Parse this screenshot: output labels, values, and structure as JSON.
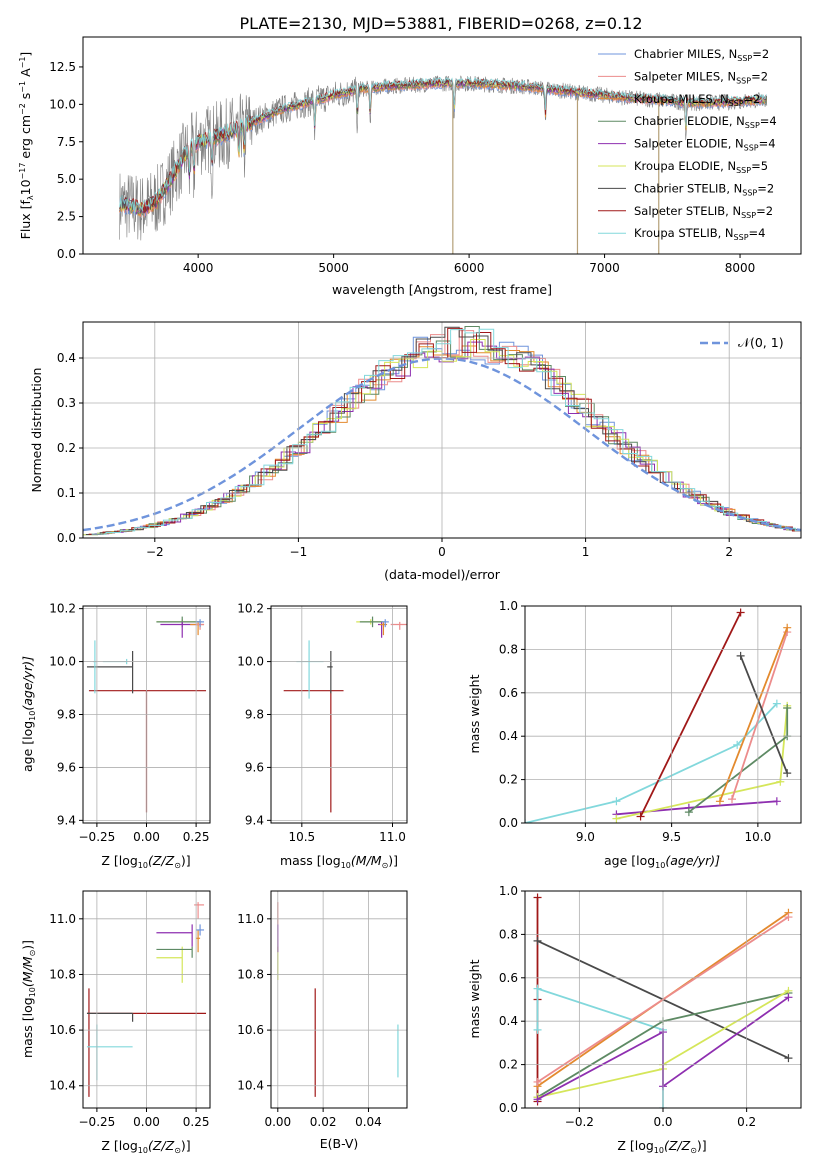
{
  "page_title": "PLATE=2130, MJD=53881, FIBERID=0268, z=0.12",
  "colors": {
    "chabrier_miles": "#6f94dc",
    "salpeter_miles": "#ec8c8c",
    "kroupa_miles": "#e38a2e",
    "chabrier_elodie": "#5e8a64",
    "salpeter_elodie": "#8e2fb0",
    "kroupa_elodie": "#d5e65a",
    "chabrier_stelib": "#4a4a4a",
    "salpeter_stelib": "#a01818",
    "kroupa_stelib": "#82d8dc",
    "normal_curve": "#6f94dc",
    "grid": "#b0b0b0"
  },
  "chart_data": [
    {
      "id": "spectrum",
      "type": "line",
      "xlabel": "wavelength [Angstrom, rest frame]",
      "ylabel": "Flux [f",
      "ylabel_parts": [
        "λ",
        "10",
        "−17",
        " erg cm",
        "−2",
        " s",
        "−1",
        " A",
        "−1",
        "]"
      ],
      "xlim": [
        3150,
        8450
      ],
      "ylim": [
        0,
        14.5
      ],
      "xticks": [
        4000,
        5000,
        6000,
        7000,
        8000
      ],
      "yticks": [
        0.0,
        2.5,
        5.0,
        7.5,
        10.0,
        12.5
      ],
      "ytick_labels": [
        "0.0",
        "2.5",
        "5.0",
        "7.5",
        "10.0",
        "12.5"
      ],
      "legend_position": "upper-right",
      "legend": [
        {
          "label": "Chabrier MILES, N",
          "sub": "SSP",
          "suffix": "=2"
        },
        {
          "label": "Salpeter MILES, N",
          "sub": "SSP",
          "suffix": "=2"
        },
        {
          "label": "Kroupa MILES, N",
          "sub": "SSP",
          "suffix": "=2"
        },
        {
          "label": "Chabrier ELODIE, N",
          "sub": "SSP",
          "suffix": "=4"
        },
        {
          "label": "Salpeter ELODIE, N",
          "sub": "SSP",
          "suffix": "=4"
        },
        {
          "label": "Kroupa ELODIE, N",
          "sub": "SSP",
          "suffix": "=5"
        },
        {
          "label": "Chabrier STELIB, N",
          "sub": "SSP",
          "suffix": "=2"
        },
        {
          "label": "Salpeter STELIB, N",
          "sub": "SSP",
          "suffix": "=2"
        },
        {
          "label": "Kroupa STELIB, N",
          "sub": "SSP",
          "suffix": "=4"
        }
      ],
      "continuum": [
        [
          3400,
          3.4
        ],
        [
          3600,
          3.0
        ],
        [
          3700,
          3.6
        ],
        [
          3800,
          5.0
        ],
        [
          3900,
          6.6
        ],
        [
          4000,
          7.5
        ],
        [
          4200,
          8.0
        ],
        [
          4400,
          8.8
        ],
        [
          4600,
          9.6
        ],
        [
          4800,
          10.1
        ],
        [
          5000,
          10.6
        ],
        [
          5200,
          11.0
        ],
        [
          5400,
          11.2
        ],
        [
          5600,
          11.3
        ],
        [
          5800,
          11.4
        ],
        [
          6000,
          11.4
        ],
        [
          6200,
          11.3
        ],
        [
          6400,
          11.2
        ],
        [
          6600,
          11.0
        ],
        [
          6800,
          10.8
        ],
        [
          7000,
          10.6
        ],
        [
          7200,
          10.4
        ],
        [
          7400,
          10.3
        ],
        [
          7600,
          10.1
        ],
        [
          7800,
          10.1
        ],
        [
          8000,
          10.2
        ],
        [
          8200,
          10.3
        ]
      ],
      "absorption_lines": [
        3934,
        3969,
        4102,
        4300,
        4340,
        4861,
        5175,
        5270,
        5890,
        6563,
        7600
      ],
      "drop_lines": [
        {
          "x": 5880,
          "y": 0.0
        },
        {
          "x": 6800,
          "y": 0.0
        },
        {
          "x": 7400,
          "y": 0.0
        }
      ]
    },
    {
      "id": "residuals",
      "type": "step-histogram",
      "xlabel": "(data-model)/error",
      "ylabel": "Normed distribution",
      "xlim": [
        -2.5,
        2.5
      ],
      "ylim": [
        0,
        0.48
      ],
      "xticks": [
        -2,
        -1,
        0,
        1,
        2
      ],
      "xtick_labels": [
        "−2",
        "−1",
        "0",
        "1",
        "2"
      ],
      "yticks": [
        0.0,
        0.1,
        0.2,
        0.3,
        0.4
      ],
      "ytick_labels": [
        "0.0",
        "0.1",
        "0.2",
        "0.3",
        "0.4"
      ],
      "bin_width": 0.1,
      "curve_label": "𝒩(0, 1)",
      "legend_position": "upper-right"
    },
    {
      "id": "z-age",
      "type": "errorbar",
      "xlabel": "Z [log",
      "xlabel_sub": "10",
      "xlabel_tail": "(Z/Z",
      "xlabel_end": ")]",
      "ylabel": "age  [log",
      "ylabel_tail": "(age/yr)]",
      "xlim": [
        -0.32,
        0.32
      ],
      "ylim": [
        9.39,
        10.21
      ],
      "xticks": [
        -0.25,
        0.0,
        0.25
      ],
      "xtick_labels": [
        "−0.25",
        "0.00",
        "0.25"
      ],
      "yticks": [
        9.4,
        9.6,
        9.8,
        10.0,
        10.2
      ],
      "ytick_labels": [
        "9.4",
        "9.6",
        "9.8",
        "10.0",
        "10.2"
      ],
      "points": [
        {
          "s": "salpeter_stelib",
          "x": 0.0,
          "xl": -0.29,
          "xh": 0.3,
          "y": 9.89,
          "yl": 9.43,
          "yh": 9.89
        },
        {
          "s": "chabrier_stelib",
          "x": -0.07,
          "xl": -0.3,
          "xh": -0.07,
          "y": 9.98,
          "yl": 9.88,
          "yh": 10.04
        },
        {
          "s": "kroupa_stelib",
          "x": -0.26,
          "xl": -0.27,
          "xh": -0.25,
          "y": 10.0,
          "yl": 9.88,
          "yh": 10.08
        },
        {
          "s": "kroupa_stelib",
          "x": -0.1,
          "xl": -0.22,
          "xh": -0.1,
          "y": 10.0,
          "yl": 9.99,
          "yh": 10.01
        },
        {
          "s": "kroupa_elodie",
          "x": 0.18,
          "xl": 0.05,
          "xh": 0.28,
          "y": 10.15,
          "yl": 10.14,
          "yh": 10.16
        },
        {
          "s": "chabrier_elodie",
          "x": 0.18,
          "xl": 0.05,
          "xh": 0.27,
          "y": 10.15,
          "yl": 10.13,
          "yh": 10.17
        },
        {
          "s": "salpeter_elodie",
          "x": 0.18,
          "xl": 0.07,
          "xh": 0.27,
          "y": 10.14,
          "yl": 10.09,
          "yh": 10.15
        },
        {
          "s": "kroupa_miles",
          "x": 0.26,
          "xl": 0.22,
          "xh": 0.29,
          "y": 10.14,
          "yl": 10.1,
          "yh": 10.15
        },
        {
          "s": "salpeter_miles",
          "x": 0.27,
          "xl": 0.25,
          "xh": 0.29,
          "y": 10.14,
          "yl": 10.12,
          "yh": 10.15
        },
        {
          "s": "chabrier_miles",
          "x": 0.27,
          "xl": 0.25,
          "xh": 0.29,
          "y": 10.15,
          "yl": 10.13,
          "yh": 10.16
        }
      ]
    },
    {
      "id": "mass-age",
      "type": "errorbar",
      "xlabel": "mass [log",
      "xlabel_tail": "(M/M",
      "xlim": [
        10.33,
        11.08
      ],
      "ylim": [
        9.39,
        10.21
      ],
      "xticks": [
        10.5,
        11.0
      ],
      "xtick_labels": [
        "10.5",
        "11.0"
      ],
      "yticks": [
        9.4,
        9.6,
        9.8,
        10.0,
        10.2
      ],
      "ytick_labels": [
        "9.4",
        "9.6",
        "9.8",
        "10.0",
        "10.2"
      ],
      "points": [
        {
          "s": "salpeter_stelib",
          "x": 10.66,
          "xl": 10.4,
          "xh": 10.73,
          "y": 9.89,
          "yl": 9.43,
          "yh": 9.89
        },
        {
          "s": "chabrier_stelib",
          "x": 10.66,
          "xl": 10.64,
          "xh": 10.67,
          "y": 9.98,
          "yl": 9.88,
          "yh": 10.04
        },
        {
          "s": "kroupa_stelib",
          "x": 10.54,
          "xl": 10.47,
          "xh": 10.62,
          "y": 10.0,
          "yl": 9.86,
          "yh": 10.08
        },
        {
          "s": "kroupa_elodie",
          "x": 10.88,
          "xl": 10.8,
          "xh": 10.96,
          "y": 10.15,
          "yl": 10.14,
          "yh": 10.16
        },
        {
          "s": "chabrier_elodie",
          "x": 10.89,
          "xl": 10.82,
          "xh": 10.95,
          "y": 10.15,
          "yl": 10.13,
          "yh": 10.17
        },
        {
          "s": "salpeter_elodie",
          "x": 10.94,
          "xl": 10.92,
          "xh": 10.96,
          "y": 10.14,
          "yl": 10.09,
          "yh": 10.15
        },
        {
          "s": "kroupa_miles",
          "x": 10.95,
          "xl": 10.93,
          "xh": 10.97,
          "y": 10.14,
          "yl": 10.1,
          "yh": 10.15
        },
        {
          "s": "salpeter_miles",
          "x": 11.04,
          "xl": 10.99,
          "xh": 11.08,
          "y": 10.14,
          "yl": 10.12,
          "yh": 10.15
        },
        {
          "s": "chabrier_miles",
          "x": 10.96,
          "xl": 10.94,
          "xh": 10.98,
          "y": 10.15,
          "yl": 10.13,
          "yh": 10.16
        }
      ]
    },
    {
      "id": "age-weight",
      "type": "line",
      "xlabel": "age  [log",
      "xlabel_tail": "(age/yr)]",
      "ylabel": "mass weight",
      "xlim": [
        8.65,
        10.25
      ],
      "ylim": [
        0,
        1
      ],
      "xticks": [
        9.0,
        9.5,
        10.0
      ],
      "xtick_labels": [
        "9.0",
        "9.5",
        "10.0"
      ],
      "yticks": [
        0.0,
        0.2,
        0.4,
        0.6,
        0.8,
        1.0
      ],
      "ytick_labels": [
        "0.0",
        "0.2",
        "0.4",
        "0.6",
        "0.8",
        "1.0"
      ],
      "series": [
        {
          "s": "kroupa_stelib",
          "x": [
            8.65,
            9.18,
            9.88,
            10.11
          ],
          "y": [
            0.0,
            0.1,
            0.36,
            0.55
          ]
        },
        {
          "s": "salpeter_elodie",
          "x": [
            9.18,
            9.6,
            10.11
          ],
          "y": [
            0.04,
            0.07,
            0.1
          ]
        },
        {
          "s": "kroupa_elodie",
          "x": [
            9.18,
            10.13,
            10.17,
            10.17
          ],
          "y": [
            0.02,
            0.19,
            0.54,
            0.53
          ]
        },
        {
          "s": "chabrier_elodie",
          "x": [
            9.6,
            10.17,
            10.17
          ],
          "y": [
            0.05,
            0.4,
            0.53
          ]
        },
        {
          "s": "salpeter_miles",
          "x": [
            9.85,
            10.17
          ],
          "y": [
            0.11,
            0.88
          ]
        },
        {
          "s": "kroupa_miles",
          "x": [
            9.78,
            10.17
          ],
          "y": [
            0.1,
            0.9
          ]
        },
        {
          "s": "chabrier_stelib",
          "x": [
            9.9,
            10.17
          ],
          "y": [
            0.77,
            0.23
          ]
        },
        {
          "s": "salpeter_stelib",
          "x": [
            9.32,
            9.9
          ],
          "y": [
            0.03,
            0.97
          ]
        }
      ]
    },
    {
      "id": "z-mass",
      "type": "errorbar",
      "ylabel": "mass [log",
      "ylabel_tail": "(M/M",
      "xlim": [
        -0.32,
        0.32
      ],
      "ylim": [
        10.32,
        11.1
      ],
      "xticks": [
        -0.25,
        0.0,
        0.25
      ],
      "xtick_labels": [
        "−0.25",
        "0.00",
        "0.25"
      ],
      "yticks": [
        10.4,
        10.6,
        10.8,
        11.0
      ],
      "ytick_labels": [
        "10.4",
        "10.6",
        "10.8",
        "11.0"
      ],
      "points": [
        {
          "s": "salpeter_stelib",
          "x": -0.29,
          "xl": -0.3,
          "xh": 0.3,
          "y": 10.66,
          "yl": 10.36,
          "yh": 10.75
        },
        {
          "s": "chabrier_stelib",
          "x": -0.07,
          "xl": -0.3,
          "xh": -0.07,
          "y": 10.66,
          "yl": 10.63,
          "yh": 10.66
        },
        {
          "s": "kroupa_stelib",
          "x": -0.25,
          "xl": -0.3,
          "xh": -0.07,
          "y": 10.54,
          "yl": 10.42,
          "yh": 10.62
        },
        {
          "s": "kroupa_elodie",
          "x": 0.18,
          "xl": 0.05,
          "xh": 0.18,
          "y": 10.86,
          "yl": 10.77,
          "yh": 10.9
        },
        {
          "s": "chabrier_elodie",
          "x": 0.23,
          "xl": 0.05,
          "xh": 0.23,
          "y": 10.89,
          "yl": 10.86,
          "yh": 10.9
        },
        {
          "s": "salpeter_elodie",
          "x": 0.23,
          "xl": 0.05,
          "xh": 0.23,
          "y": 10.95,
          "yl": 10.9,
          "yh": 10.98
        },
        {
          "s": "kroupa_miles",
          "x": 0.26,
          "xl": 0.25,
          "xh": 0.27,
          "y": 10.93,
          "yl": 10.88,
          "yh": 10.96
        },
        {
          "s": "salpeter_miles",
          "x": 0.26,
          "xl": 0.24,
          "xh": 0.29,
          "y": 11.05,
          "yl": 11.0,
          "yh": 11.06
        },
        {
          "s": "chabrier_miles",
          "x": 0.27,
          "xl": 0.25,
          "xh": 0.29,
          "y": 10.96,
          "yl": 10.94,
          "yh": 10.98
        }
      ]
    },
    {
      "id": "ebv-mass",
      "type": "errorbar",
      "xlabel": "E(B-V)",
      "xlim": [
        -0.003,
        0.057
      ],
      "ylim": [
        10.32,
        11.1
      ],
      "xticks": [
        0.0,
        0.02,
        0.04
      ],
      "xtick_labels": [
        "0.00",
        "0.02",
        "0.04"
      ],
      "yticks": [
        10.4,
        10.6,
        10.8,
        11.0
      ],
      "ytick_labels": [
        "10.4",
        "10.6",
        "10.8",
        "11.0"
      ],
      "points": [
        {
          "s": "salpeter_stelib",
          "x": 0.0165,
          "xl": 0.0165,
          "xh": 0.0165,
          "y": 10.66,
          "yl": 10.36,
          "yh": 10.75
        },
        {
          "s": "kroupa_stelib",
          "x": 0.053,
          "xl": 0.053,
          "xh": 0.053,
          "y": 10.54,
          "yl": 10.43,
          "yh": 10.62
        },
        {
          "s": "kroupa_elodie",
          "x": 0.0,
          "xl": 0.0,
          "xh": 0.0,
          "y": 10.86,
          "yl": 10.78,
          "yh": 10.9
        },
        {
          "s": "salpeter_elodie",
          "x": 0.0,
          "xl": 0.0,
          "xh": 0.0,
          "y": 10.94,
          "yl": 10.88,
          "yh": 10.98
        },
        {
          "s": "salpeter_miles",
          "x": 0.0,
          "xl": 0.0,
          "xh": 0.0,
          "y": 11.03,
          "yl": 10.98,
          "yh": 11.06
        }
      ]
    },
    {
      "id": "z-weight",
      "type": "line",
      "ylabel": "mass weight",
      "xlim": [
        -0.33,
        0.33
      ],
      "ylim": [
        0,
        1
      ],
      "xticks": [
        -0.2,
        0.0,
        0.2
      ],
      "xtick_labels": [
        "−0.2",
        "0.0",
        "0.2"
      ],
      "yticks": [
        0.0,
        0.2,
        0.4,
        0.6,
        0.8,
        1.0
      ],
      "ytick_labels": [
        "0.0",
        "0.2",
        "0.4",
        "0.6",
        "0.8",
        "1.0"
      ],
      "series": [
        {
          "s": "salpeter_stelib",
          "x": [
            -0.3,
            -0.3,
            -0.3
          ],
          "y": [
            0.03,
            0.5,
            0.97
          ]
        },
        {
          "s": "kroupa_stelib",
          "x": [
            -0.3,
            -0.3,
            0.0,
            0.0
          ],
          "y": [
            0.36,
            0.55,
            0.36,
            0.0
          ]
        },
        {
          "s": "chabrier_stelib",
          "x": [
            -0.3,
            0.3
          ],
          "y": [
            0.77,
            0.23
          ]
        },
        {
          "s": "kroupa_miles",
          "x": [
            -0.3,
            0.3
          ],
          "y": [
            0.1,
            0.9
          ]
        },
        {
          "s": "salpeter_miles",
          "x": [
            -0.3,
            0.3
          ],
          "y": [
            0.12,
            0.88
          ]
        },
        {
          "s": "chabrier_elodie",
          "x": [
            -0.3,
            0.0,
            0.3
          ],
          "y": [
            0.05,
            0.4,
            0.53
          ]
        },
        {
          "s": "kroupa_elodie",
          "x": [
            -0.3,
            0.0,
            0.0,
            0.3
          ],
          "y": [
            0.05,
            0.18,
            0.2,
            0.54
          ]
        },
        {
          "s": "salpeter_elodie",
          "x": [
            -0.3,
            0.0,
            0.0,
            0.3
          ],
          "y": [
            0.04,
            0.35,
            0.1,
            0.51
          ]
        }
      ]
    }
  ]
}
